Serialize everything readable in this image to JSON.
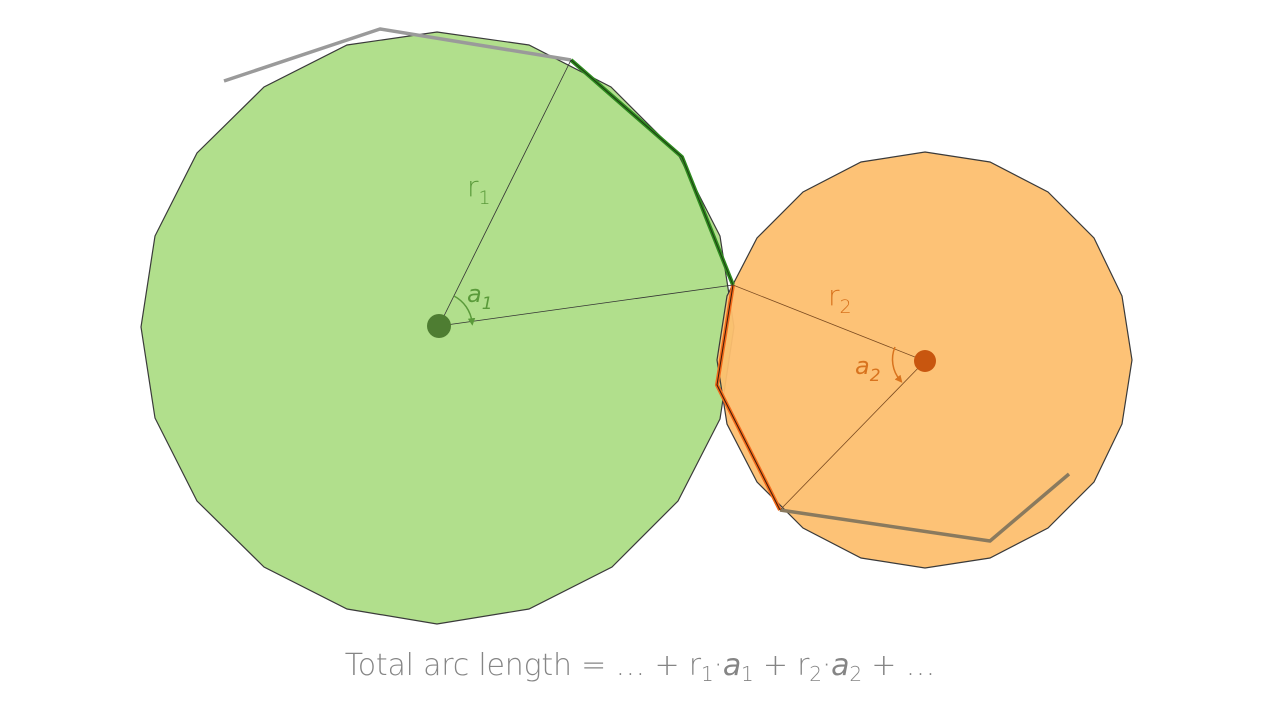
{
  "colors": {
    "green_fill": "#b1df8c",
    "green_stroke": "#2e8b1f",
    "green_label": "#5a9a3a",
    "green_center": "#4e7d32",
    "orange_fill": "#fdbf6f",
    "orange_stroke": "#f26a1b",
    "orange_label": "#d8731e",
    "orange_center": "#c8560f",
    "outline": "#3a3a3a",
    "path_gray": "#9a9a9a",
    "formula_text": "#858585"
  },
  "labels": {
    "r1": {
      "base": "r",
      "sub": "1"
    },
    "a1": {
      "base": "a",
      "sub": "1"
    },
    "r2": {
      "base": "r",
      "sub": "2"
    },
    "a2": {
      "base": "a",
      "sub": "2"
    }
  },
  "formula": {
    "prefix": "Total arc length = … + r",
    "sub1": "1",
    "dot1": "·",
    "a1": "a",
    "sub_a1": "1",
    "plus_mid": " + r",
    "sub2": "2",
    "dot2": "·",
    "a2": "a",
    "sub_a2": "2",
    "suffix": "+ …"
  }
}
